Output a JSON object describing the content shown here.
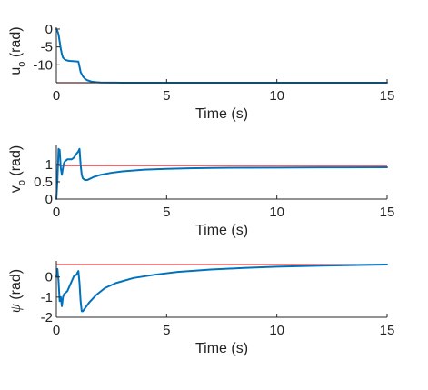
{
  "colors": {
    "signal": "#0072bd",
    "reference": "#e8393c",
    "axis": "#262626"
  },
  "chart_data": [
    {
      "type": "line",
      "xlabel": "Time (s)",
      "ylabel_main": "u",
      "ylabel_sub": "o",
      "ylabel_unit": " (rad)",
      "xlim": [
        0,
        15
      ],
      "ylim": [
        -15,
        0.5
      ],
      "xticks": [
        0,
        5,
        10,
        15
      ],
      "xtick_labels": [
        "0",
        "5",
        "10",
        "15"
      ],
      "yticks": [
        0,
        -5,
        -10
      ],
      "ytick_labels": [
        "0",
        "-5",
        "-10"
      ],
      "series": [
        {
          "role": "reference",
          "x": [
            0,
            15
          ],
          "y": [
            -15,
            -15
          ]
        },
        {
          "role": "signal",
          "x": [
            0,
            0.05,
            0.1,
            0.15,
            0.2,
            0.25,
            0.3,
            0.4,
            0.5,
            0.6,
            0.8,
            1.0,
            1.05,
            1.1,
            1.2,
            1.3,
            1.4,
            1.6,
            1.8,
            2.0,
            2.5,
            3,
            4,
            5,
            7,
            10,
            15
          ],
          "y": [
            0,
            -0.5,
            -1.5,
            -3.5,
            -5.5,
            -7,
            -8,
            -8.6,
            -8.8,
            -8.9,
            -9.0,
            -9.1,
            -10.5,
            -12,
            -13.2,
            -13.9,
            -14.3,
            -14.7,
            -14.85,
            -14.92,
            -14.97,
            -15,
            -15,
            -15,
            -15,
            -15,
            -15
          ]
        }
      ]
    },
    {
      "type": "line",
      "xlabel": "Time (s)",
      "ylabel_main": "v",
      "ylabel_sub": "o",
      "ylabel_unit": " (rad)",
      "xlim": [
        0,
        15
      ],
      "ylim": [
        0,
        1.55
      ],
      "xticks": [
        0,
        5,
        10,
        15
      ],
      "xtick_labels": [
        "0",
        "5",
        "10",
        "15"
      ],
      "yticks": [
        0,
        0.5,
        1
      ],
      "ytick_labels": [
        "0",
        "0.5",
        "1"
      ],
      "series": [
        {
          "role": "reference",
          "x": [
            0,
            15
          ],
          "y": [
            0.97,
            0.97
          ]
        },
        {
          "role": "signal",
          "x": [
            0,
            0.05,
            0.1,
            0.15,
            0.2,
            0.25,
            0.3,
            0.35,
            0.4,
            0.45,
            0.5,
            0.6,
            0.7,
            0.8,
            0.9,
            1.0,
            1.05,
            1.1,
            1.15,
            1.2,
            1.3,
            1.4,
            1.5,
            1.7,
            2,
            2.5,
            3,
            4,
            5,
            6,
            7,
            8,
            10,
            12,
            15
          ],
          "y": [
            0,
            0.55,
            1.45,
            1.42,
            0.9,
            0.7,
            0.9,
            1.05,
            1.1,
            1.12,
            1.15,
            1.15,
            1.15,
            1.2,
            1.3,
            1.38,
            1.45,
            1.0,
            0.7,
            0.6,
            0.55,
            0.55,
            0.58,
            0.64,
            0.7,
            0.76,
            0.8,
            0.85,
            0.875,
            0.89,
            0.9,
            0.905,
            0.91,
            0.915,
            0.92
          ]
        }
      ]
    },
    {
      "type": "line",
      "xlabel": "Time (s)",
      "ylabel_main": "ψ",
      "ylabel_sub": "",
      "ylabel_unit": " (rad)",
      "xlim": [
        0,
        15
      ],
      "ylim": [
        -2,
        0.8
      ],
      "xticks": [
        0,
        5,
        10,
        15
      ],
      "xtick_labels": [
        "0",
        "5",
        "10",
        "15"
      ],
      "yticks": [
        0,
        -1,
        -2
      ],
      "ytick_labels": [
        "0",
        "-1",
        "-2"
      ],
      "series": [
        {
          "role": "reference",
          "x": [
            0,
            15
          ],
          "y": [
            0.62,
            0.62
          ]
        },
        {
          "role": "signal",
          "x": [
            0,
            0.05,
            0.1,
            0.15,
            0.2,
            0.25,
            0.3,
            0.35,
            0.4,
            0.5,
            0.6,
            0.7,
            0.8,
            0.9,
            1.0,
            1.05,
            1.1,
            1.15,
            1.2,
            1.3,
            1.5,
            1.8,
            2.2,
            2.7,
            3.5,
            4.5,
            5.5,
            7,
            8.5,
            10,
            12,
            14,
            15
          ],
          "y": [
            0,
            0.4,
            -0.2,
            -1.2,
            -1.0,
            -1.45,
            -1.0,
            -0.85,
            -0.8,
            -0.7,
            -0.45,
            -0.2,
            0.05,
            0.1,
            0.3,
            -0.3,
            -1.2,
            -1.7,
            -1.7,
            -1.55,
            -1.25,
            -0.9,
            -0.55,
            -0.3,
            -0.05,
            0.12,
            0.25,
            0.37,
            0.45,
            0.51,
            0.56,
            0.6,
            0.62
          ]
        }
      ]
    }
  ]
}
